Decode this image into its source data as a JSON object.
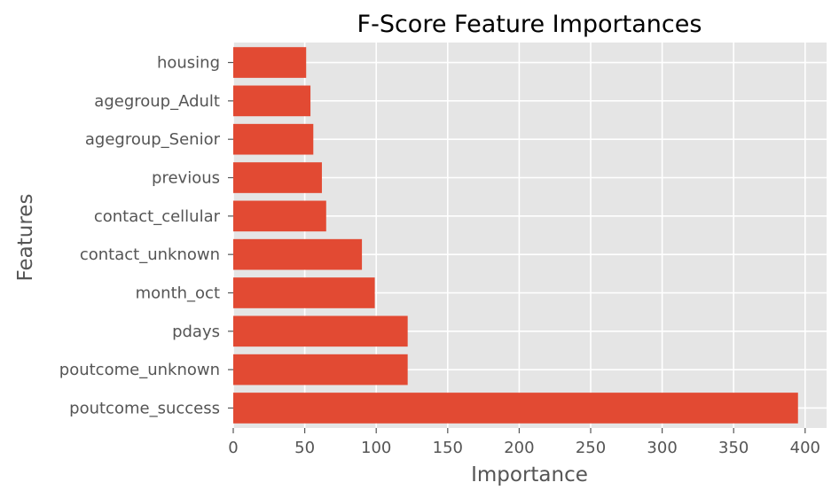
{
  "chart_data": {
    "type": "bar",
    "orientation": "horizontal",
    "title": "F-Score Feature Importances",
    "xlabel": "Importance",
    "ylabel": "Features",
    "categories": [
      "poutcome_success",
      "poutcome_unknown",
      "pdays",
      "month_oct",
      "contact_unknown",
      "contact_cellular",
      "previous",
      "agegroup_Senior",
      "agegroup_Adult",
      "housing"
    ],
    "values": [
      395,
      122,
      122,
      99,
      90,
      65,
      62,
      56,
      54,
      51
    ],
    "xlim": [
      0,
      415
    ],
    "xticks": [
      0,
      50,
      100,
      150,
      200,
      250,
      300,
      350,
      400
    ],
    "grid": true,
    "bar_color": "#E24A33",
    "background_color": "#E5E5E5",
    "grid_color": "#FFFFFF"
  }
}
